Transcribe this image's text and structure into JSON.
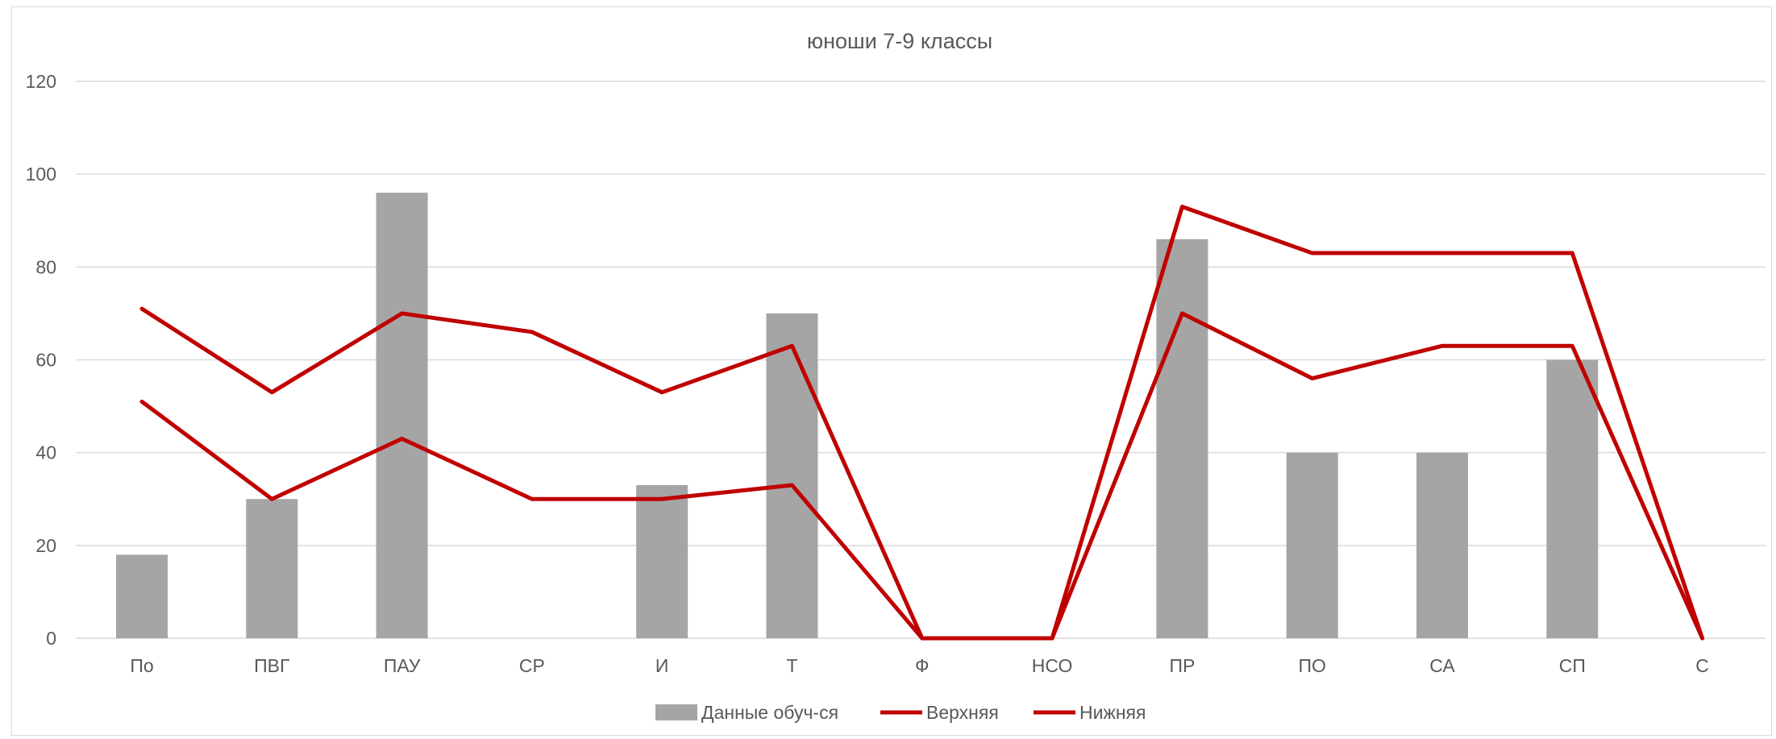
{
  "chart_data": {
    "type": "bar",
    "title": "юноши 7-9 классы",
    "xlabel": "",
    "ylabel": "",
    "ylim": [
      0,
      120
    ],
    "yticks": [
      0,
      20,
      40,
      60,
      80,
      100,
      120
    ],
    "grid": true,
    "legend_position": "bottom",
    "categories": [
      "По",
      "ПВГ",
      "ПАУ",
      "СР",
      "И",
      "Т",
      "Ф",
      "НСО",
      "ПР",
      "ПО",
      "СА",
      "СП",
      "С"
    ],
    "series": [
      {
        "name": "Данные обуч-ся",
        "type": "bar",
        "color": "#a5a5a5",
        "values": [
          18,
          30,
          96,
          null,
          33,
          70,
          null,
          null,
          86,
          40,
          40,
          60,
          null
        ]
      },
      {
        "name": "Верхняя",
        "type": "line",
        "color": "#c00000",
        "values": [
          71,
          53,
          70,
          66,
          53,
          63,
          0,
          0,
          93,
          83,
          83,
          83,
          0
        ]
      },
      {
        "name": "Нижняя",
        "type": "line",
        "color": "#c00000",
        "values": [
          51,
          30,
          43,
          30,
          30,
          33,
          0,
          0,
          70,
          56,
          63,
          63,
          0
        ]
      }
    ]
  }
}
